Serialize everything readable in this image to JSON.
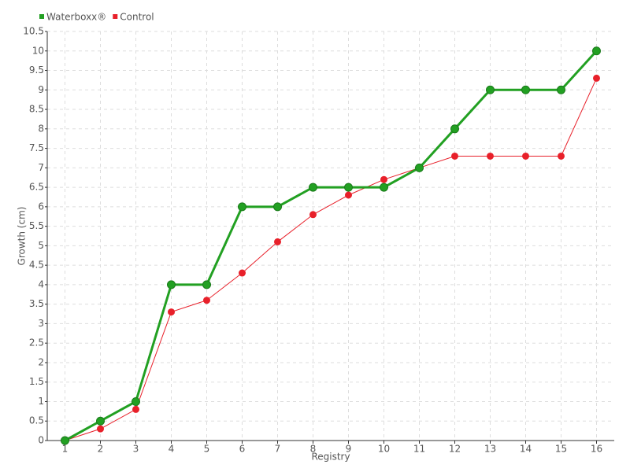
{
  "chart_data": {
    "type": "line",
    "x_label": "Registry",
    "y_label": "Growth (cm)",
    "categories": [
      "1",
      "2",
      "3",
      "4",
      "5",
      "6",
      "7",
      "8",
      "9",
      "10",
      "11",
      "12",
      "13",
      "14",
      "15",
      "16"
    ],
    "series": [
      {
        "name": "Waterboxx®",
        "color": "#22a022",
        "values": [
          0,
          0.5,
          1,
          4,
          4,
          6,
          6,
          6.5,
          6.5,
          6.5,
          7,
          8,
          9,
          9,
          9,
          10
        ]
      },
      {
        "name": "Control",
        "color": "#e8202a",
        "values": [
          0,
          0.3,
          0.8,
          3.3,
          3.6,
          4.3,
          5.1,
          5.8,
          6.3,
          6.7,
          7.0,
          7.3,
          7.3,
          7.3,
          7.3,
          9.3
        ]
      }
    ],
    "ylim": [
      0,
      10.5
    ],
    "yticks": [
      0,
      0.5,
      1,
      1.5,
      2,
      2.5,
      3,
      3.5,
      4,
      4.5,
      5,
      5.5,
      6,
      6.5,
      7,
      7.5,
      8,
      8.5,
      9,
      9.5,
      10,
      10.5
    ],
    "grid": true,
    "legend": "top-left"
  }
}
